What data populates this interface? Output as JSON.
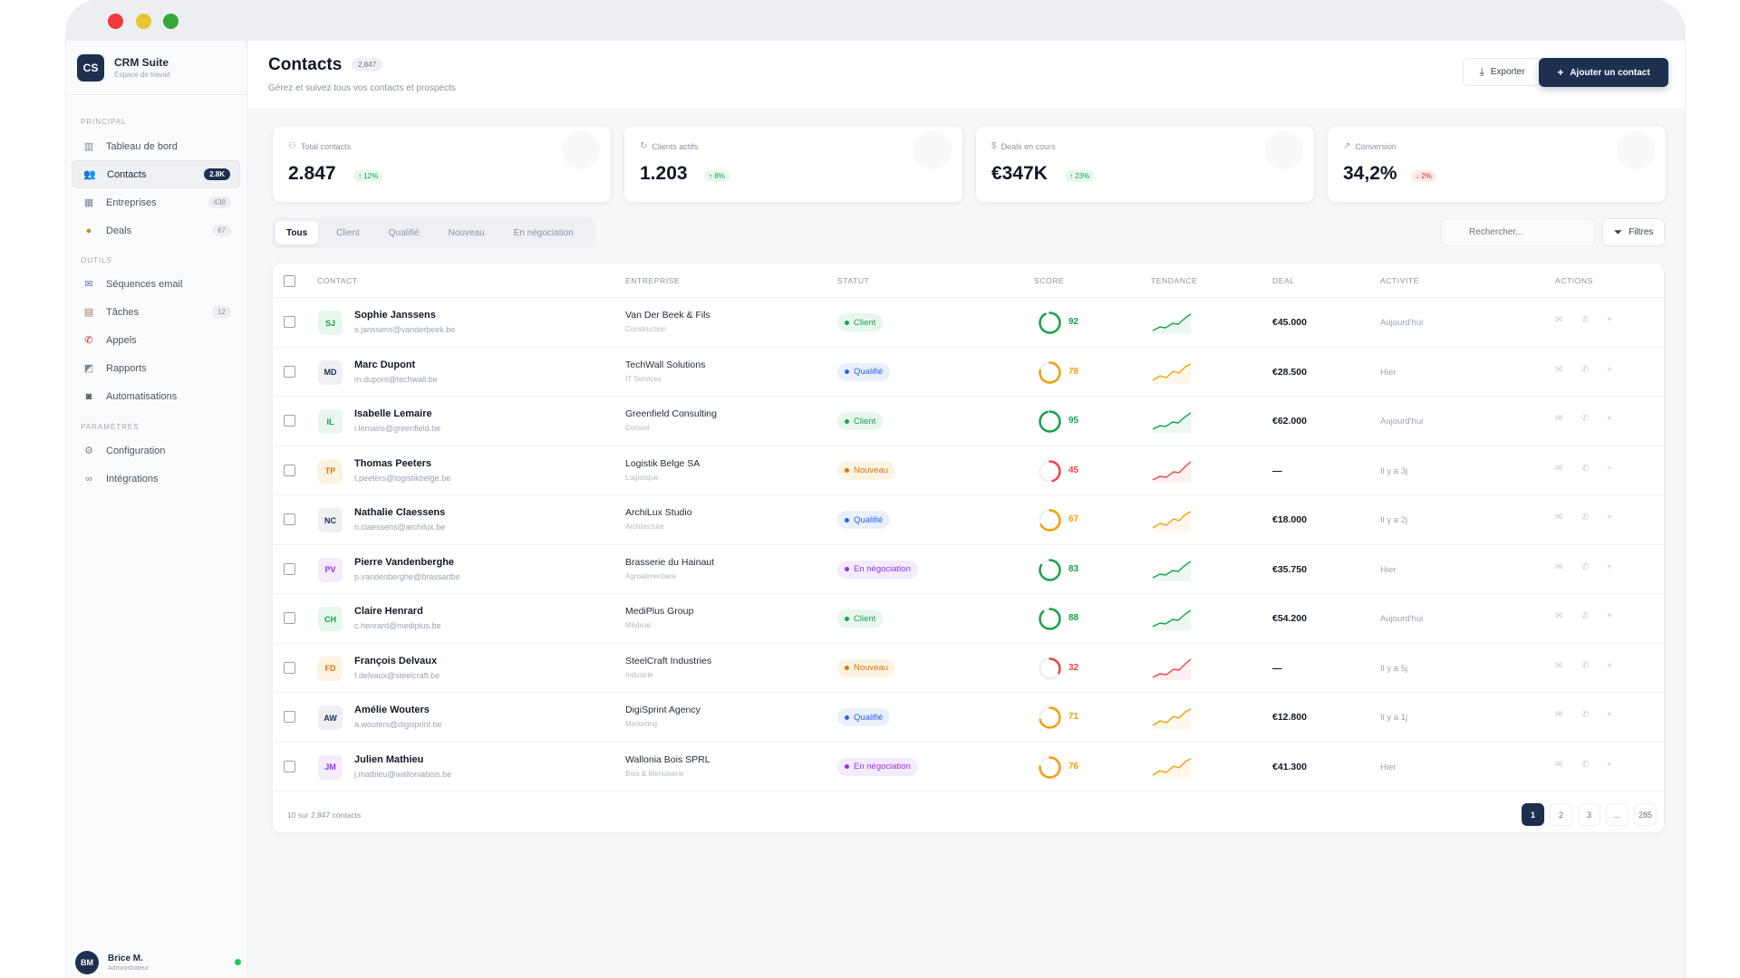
{
  "app": {
    "name": "CRM Suite",
    "subtitle": "Espace de travail",
    "logo": "CS"
  },
  "sidebar": {
    "sections": [
      {
        "title": "PRINCIPAL"
      },
      {
        "title": "OUTILS"
      },
      {
        "title": "PARAMÈTRES"
      }
    ],
    "items": [
      {
        "label": "Tableau de bord",
        "icon": "bar-chart-icon",
        "badge": ""
      },
      {
        "label": "Contacts",
        "icon": "users-icon",
        "badge": "2.8K"
      },
      {
        "label": "Entreprises",
        "icon": "building-icon",
        "badge": "438"
      },
      {
        "label": "Deals",
        "icon": "money-bag-icon",
        "badge": "67"
      },
      {
        "label": "Séquences email",
        "icon": "email-icon",
        "badge": ""
      },
      {
        "label": "Tâches",
        "icon": "clipboard-icon",
        "badge": "12"
      },
      {
        "label": "Appels",
        "icon": "phone-icon",
        "badge": ""
      },
      {
        "label": "Rapports",
        "icon": "chart-icon",
        "badge": ""
      },
      {
        "label": "Automatisations",
        "icon": "robot-icon",
        "badge": ""
      },
      {
        "label": "Configuration",
        "icon": "gear-icon",
        "badge": ""
      },
      {
        "label": "Intégrations",
        "icon": "link-icon",
        "badge": ""
      }
    ]
  },
  "user": {
    "initials": "BM",
    "name": "Brice M.",
    "role": "Administrateur"
  },
  "header": {
    "title": "Contacts",
    "count": "2.847",
    "subtitle": "Gérez et suivez tous vos contacts et prospects",
    "export_label": "Exporter",
    "add_label": "Ajouter un contact"
  },
  "stats": [
    {
      "label": "Total contacts",
      "value": "2.847",
      "delta": "↑ 12%",
      "direction": "up"
    },
    {
      "label": "Clients actifs",
      "value": "1.203",
      "delta": "↑ 8%",
      "direction": "up"
    },
    {
      "label": "Deals en cours",
      "value": "€347K",
      "delta": "↑ 23%",
      "direction": "up"
    },
    {
      "label": "Conversion",
      "value": "34,2%",
      "delta": "↓ 2%",
      "direction": "down"
    }
  ],
  "tabs": [
    "Tous",
    "Client",
    "Qualifié",
    "Nouveau",
    "En négociation"
  ],
  "search": {
    "placeholder": "Rechercher..."
  },
  "filters_label": "Filtres",
  "columns": [
    "CONTACT",
    "ENTREPRISE",
    "STATUT",
    "SCORE",
    "TENDANCE",
    "DEAL",
    "ACTIVITÉ",
    "ACTIONS"
  ],
  "rows": [
    {
      "initials": "SJ",
      "name": "Sophie Janssens",
      "email": "s.janssens@vanderbeek.be",
      "company": "Van Der Beek & Fils",
      "sector": "Construction",
      "status": "Client",
      "score": "92",
      "deal": "€45.000",
      "activity": "Aujourd'hui"
    },
    {
      "initials": "MD",
      "name": "Marc Dupont",
      "email": "m.dupont@techwall.be",
      "company": "TechWall Solutions",
      "sector": "IT Services",
      "status": "Qualifié",
      "score": "78",
      "deal": "€28.500",
      "activity": "Hier"
    },
    {
      "initials": "IL",
      "name": "Isabelle Lemaire",
      "email": "i.lemaire@greenfield.be",
      "company": "Greenfield Consulting",
      "sector": "Conseil",
      "status": "Client",
      "score": "95",
      "deal": "€62.000",
      "activity": "Aujourd'hui"
    },
    {
      "initials": "TP",
      "name": "Thomas Peeters",
      "email": "t.peeters@logistikbelge.be",
      "company": "Logistik Belge SA",
      "sector": "Logistique",
      "status": "Nouveau",
      "score": "45",
      "deal": "—",
      "activity": "Il y a 3j"
    },
    {
      "initials": "NC",
      "name": "Nathalie Claessens",
      "email": "n.claessens@archilux.be",
      "company": "ArchiLux Studio",
      "sector": "Architecture",
      "status": "Qualifié",
      "score": "67",
      "deal": "€18.000",
      "activity": "Il y a 2j"
    },
    {
      "initials": "PV",
      "name": "Pierre Vandenberghe",
      "email": "p.vandenberghe@brassartbe",
      "company": "Brasserie du Hainaut",
      "sector": "Agroalimentaire",
      "status": "En négociation",
      "score": "83",
      "deal": "€35.750",
      "activity": "Hier"
    },
    {
      "initials": "CH",
      "name": "Claire Henrard",
      "email": "c.henrard@mediplus.be",
      "company": "MediPlus Group",
      "sector": "Médical",
      "status": "Client",
      "score": "88",
      "deal": "€54.200",
      "activity": "Aujourd'hui"
    },
    {
      "initials": "FD",
      "name": "François Delvaux",
      "email": "f.delvaux@steelcraft.be",
      "company": "SteelCraft Industries",
      "sector": "Industrie",
      "status": "Nouveau",
      "score": "32",
      "deal": "—",
      "activity": "Il y a 5j"
    },
    {
      "initials": "AW",
      "name": "Amélie Wouters",
      "email": "a.wouters@digisprint.be",
      "company": "DigiSprint Agency",
      "sector": "Marketing",
      "status": "Qualifié",
      "score": "71",
      "deal": "€12.800",
      "activity": "Il y a 1j"
    },
    {
      "initials": "JM",
      "name": "Julien Mathieu",
      "email": "j.mathieu@walloniabois.be",
      "company": "Wallonia Bois SPRL",
      "sector": "Bois & Menuiserie",
      "status": "En négociation",
      "score": "76",
      "deal": "€41.300",
      "activity": "Hier"
    }
  ],
  "footer": {
    "summary": "10 sur 2.847 contacts",
    "pages": [
      "1",
      "2",
      "3",
      "...",
      "285"
    ]
  },
  "colors": {
    "primary": "#1e3050",
    "client": "#16a34a",
    "qualifie": "#2563eb",
    "nouveau": "#d97706",
    "negociation": "#9333ea",
    "score_high": "#16a34a",
    "score_mid": "#f59e0b",
    "score_low": "#ef4444"
  }
}
